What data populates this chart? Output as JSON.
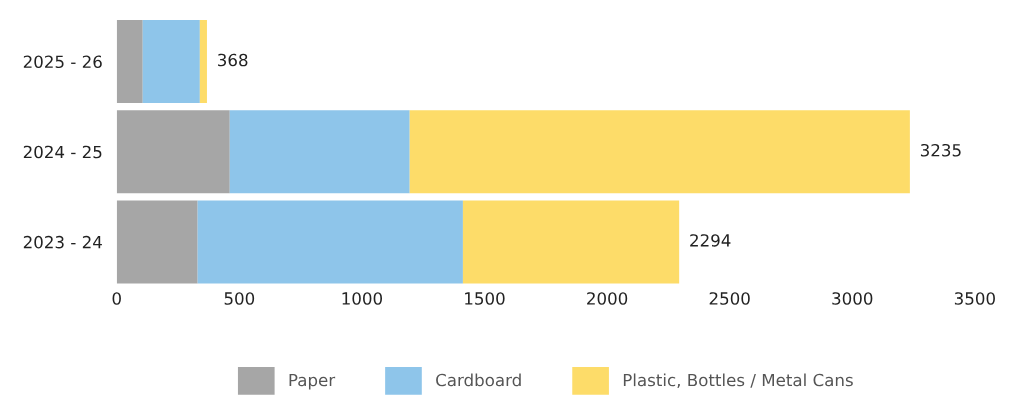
{
  "chart_data": {
    "type": "bar",
    "orientation": "horizontal",
    "stacked": true,
    "categories": [
      "2025 - 26",
      "2024 - 25",
      "2023 - 24"
    ],
    "series": [
      {
        "name": "Paper",
        "color": "#a6a6a6",
        "values": [
          106,
          461,
          330
        ]
      },
      {
        "name": "Cardboard",
        "color": "#8ec5ea",
        "values": [
          233,
          734,
          1082
        ]
      },
      {
        "name": "Plastic, Bottles / Metal Cans",
        "color": "#fddc69",
        "values": [
          29,
          2040,
          882
        ]
      }
    ],
    "totals": [
      "368",
      "3235",
      "2294"
    ],
    "xlim": [
      0,
      3500
    ],
    "xticks": [
      0,
      500,
      1000,
      1500,
      2000,
      2500,
      3000,
      3500
    ],
    "grid": false,
    "legend": "bottom"
  }
}
